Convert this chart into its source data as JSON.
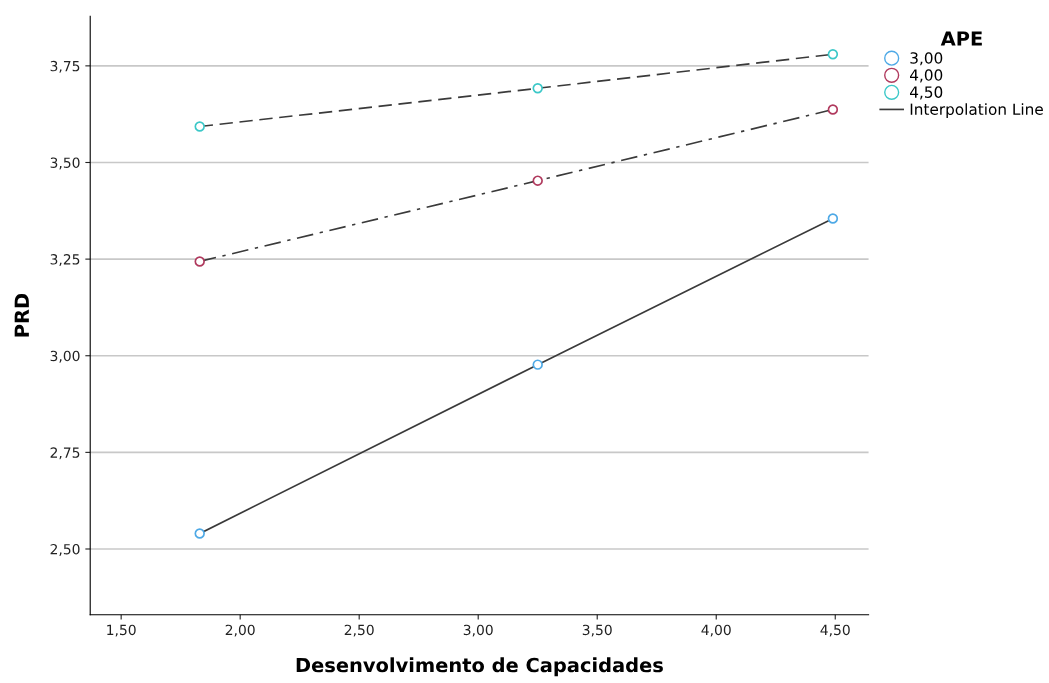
{
  "chart_data": {
    "type": "line",
    "xlabel": "Desenvolvimento de Capacidades",
    "ylabel": "PRD",
    "legend_title": "APE",
    "x": [
      1.83,
      3.25,
      4.49
    ],
    "series": [
      {
        "name": "3,00",
        "color": "#4ea9e6",
        "values": [
          2.54,
          2.977,
          3.355
        ],
        "line_style": "solid"
      },
      {
        "name": "4,00",
        "color": "#b03a5e",
        "values": [
          3.244,
          3.453,
          3.637
        ],
        "line_style": "dashdot"
      },
      {
        "name": "4,50",
        "color": "#3cc8c8",
        "values": [
          3.593,
          3.692,
          3.78
        ],
        "line_style": "dashed"
      }
    ],
    "annotations": [
      "Interpolation Line"
    ],
    "marker": "circle",
    "grid": "y",
    "legend": "top right",
    "xlim": [
      1.37,
      4.64
    ],
    "ylim": [
      2.33,
      3.878
    ],
    "xticks": [
      {
        "value": 1.5,
        "label": "1,50"
      },
      {
        "value": 2.0,
        "label": "2,00"
      },
      {
        "value": 2.5,
        "label": "2,50"
      },
      {
        "value": 3.0,
        "label": "3,00"
      },
      {
        "value": 3.5,
        "label": "3,50"
      },
      {
        "value": 4.0,
        "label": "4,00"
      },
      {
        "value": 4.5,
        "label": "4,50"
      }
    ],
    "yticks": [
      {
        "value": 2.5,
        "label": "2,50"
      },
      {
        "value": 2.75,
        "label": "2,75"
      },
      {
        "value": 3.0,
        "label": "3,00"
      },
      {
        "value": 3.25,
        "label": "3,25"
      },
      {
        "value": 3.5,
        "label": "3,50"
      },
      {
        "value": 3.75,
        "label": "3,75"
      }
    ]
  }
}
